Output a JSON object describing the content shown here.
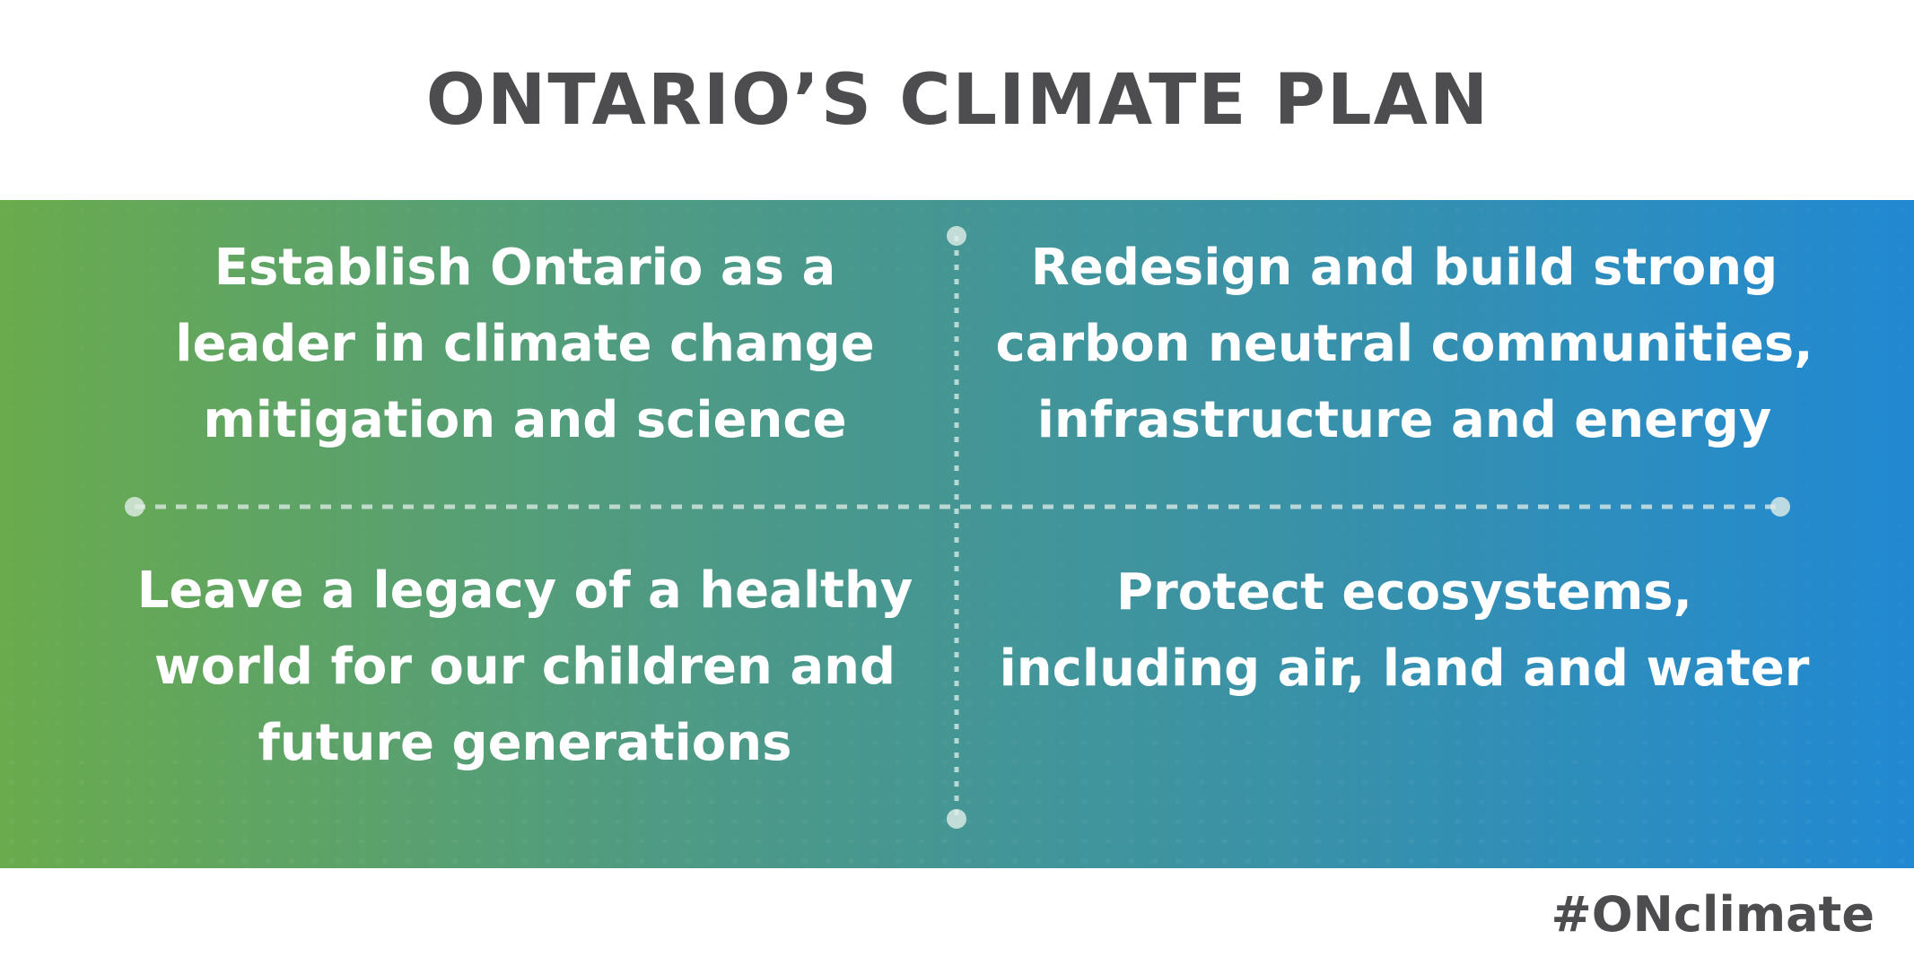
{
  "header": {
    "title": "ONTARIO’S CLIMATE PLAN"
  },
  "quadrants": {
    "top_left": "Establish Ontario as a\nleader in climate change\nmitigation and science",
    "top_right": "Redesign and build strong\ncarbon neutral communities,\ninfrastructure and energy",
    "bottom_left": "Leave a legacy of a healthy\nworld for our children and\nfuture generations",
    "bottom_right": "Protect ecosystems,\nincluding air, land and water"
  },
  "footer": {
    "hashtag": "#ONclimate"
  },
  "colors": {
    "title_text": "#4d4d4f",
    "gradient_start": "#6aab4d",
    "gradient_end": "#2189d2",
    "divider": "#d4e6dd"
  }
}
